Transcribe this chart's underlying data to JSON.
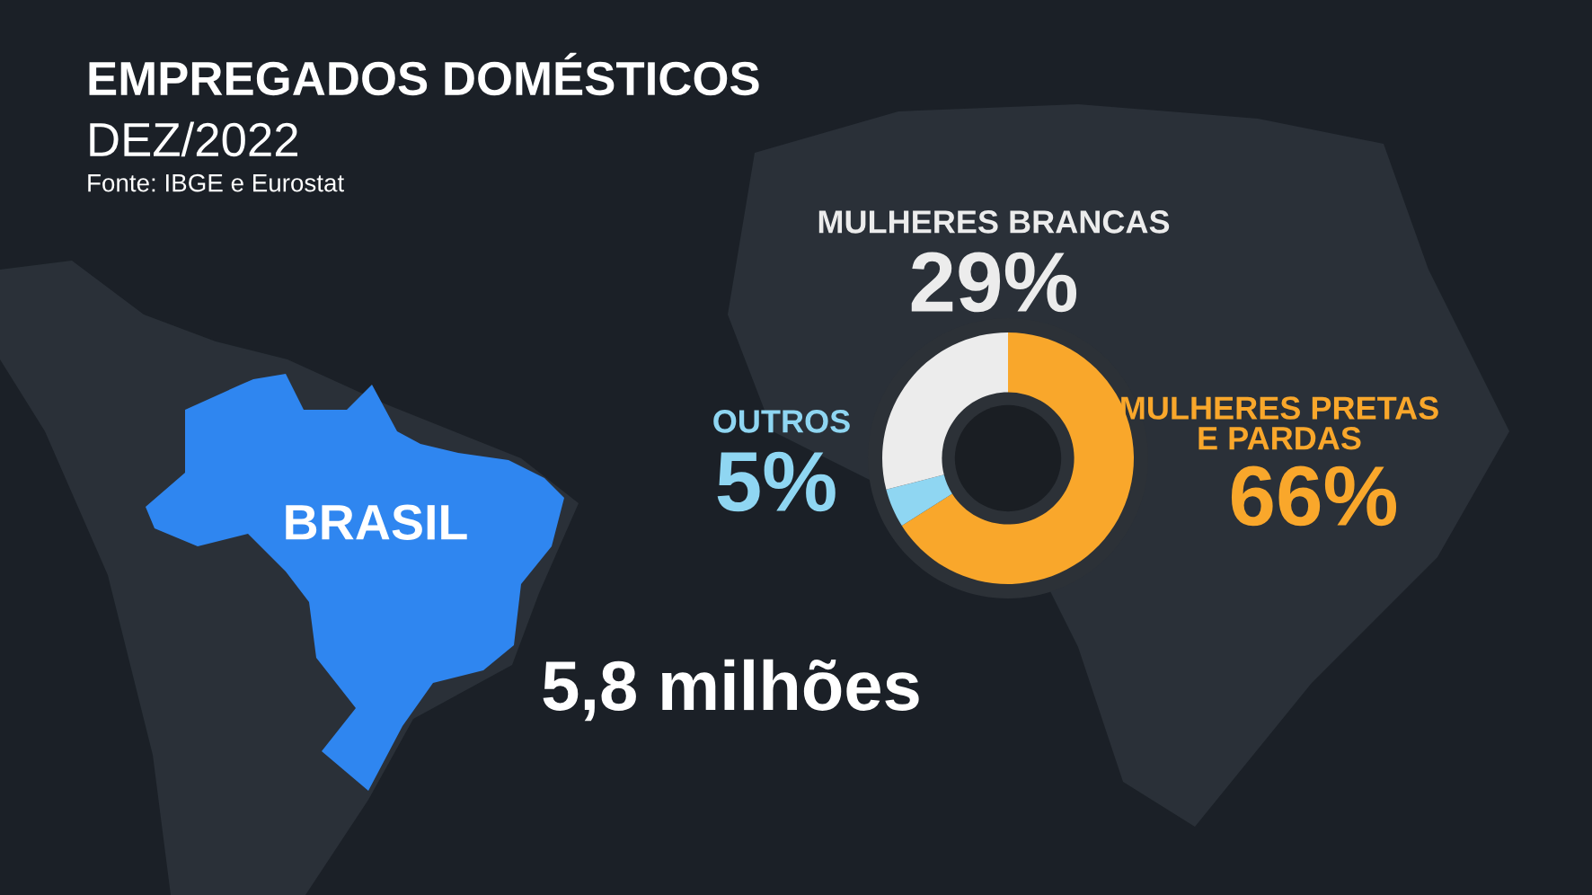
{
  "chart_data": {
    "type": "donut",
    "title": "EMPREGADOS DOMÉSTICOS",
    "subtitle": "DEZ/2022",
    "categories": [
      "MULHERES PRETAS\nE PARDAS",
      "OUTROS",
      "MULHERES BRANCAS"
    ],
    "values": [
      66,
      5,
      29
    ],
    "colors": [
      "#f9a72b",
      "#8fd6f2",
      "#ececec"
    ],
    "value_labels": [
      "66%",
      "5%",
      "29%"
    ],
    "annotations": [
      "Fonte: IBGE e Eurostat",
      "BRASIL",
      "5,8 milhões"
    ]
  }
}
